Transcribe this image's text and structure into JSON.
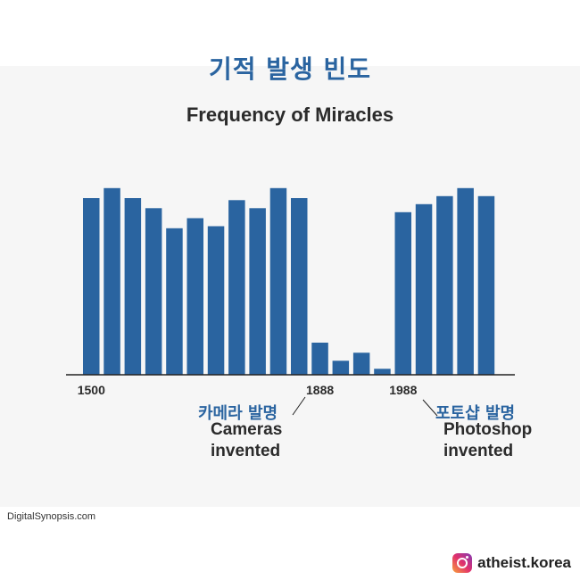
{
  "header": {
    "korean_title": "기적 발생 빈도"
  },
  "chart_data": {
    "type": "bar",
    "title": "Frequency of Miracles",
    "xlabel": "",
    "ylabel": "",
    "ylim": [
      0,
      100
    ],
    "values": [
      88,
      93,
      88,
      83,
      73,
      78,
      74,
      87,
      83,
      93,
      88,
      16,
      7,
      11,
      3,
      81,
      85,
      89,
      93,
      89
    ],
    "tick_labels": [
      "1500",
      "1888",
      "1988"
    ],
    "tick_bar_index": [
      0,
      11,
      15
    ],
    "color": "#2a64a0",
    "annotations": [
      {
        "ko": "카메라 발명",
        "en_line1": "Cameras",
        "en_line2": "invented",
        "year": "1888"
      },
      {
        "ko": "포토샵 발명",
        "en_line1": "Photoshop",
        "en_line2": "invented",
        "year": "1988"
      }
    ]
  },
  "footer": {
    "source": "DigitalSynopsis.com",
    "brand_icon": "instagram-icon",
    "brand_name": "atheist.korea"
  }
}
